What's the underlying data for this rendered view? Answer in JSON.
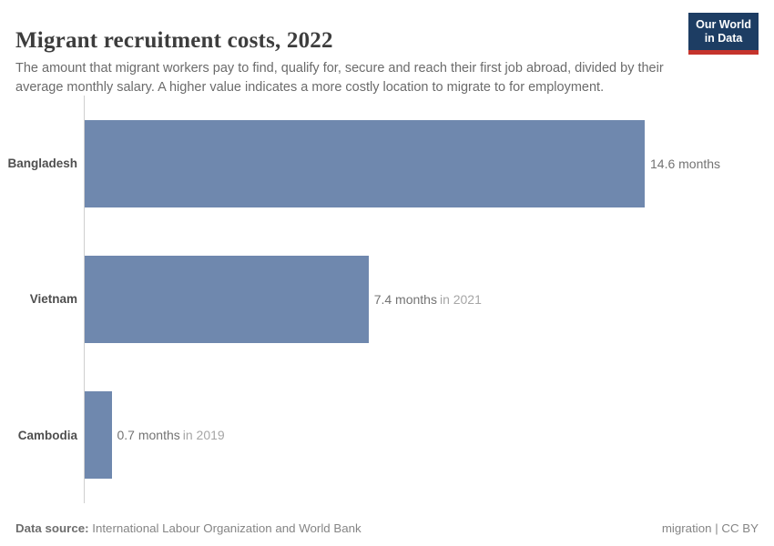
{
  "header": {
    "title": "Migrant recruitment costs, 2022",
    "subtitle": "The amount that migrant workers pay to find, qualify for, secure and reach their first job abroad, divided by their average monthly salary. A higher value indicates a more costly location to migrate to for employment.",
    "logo": {
      "line1": "Our World",
      "line2": "in Data"
    }
  },
  "chart_data": {
    "type": "bar",
    "orientation": "horizontal",
    "title": "Migrant recruitment costs, 2022",
    "unit": "months",
    "xlim": [
      0,
      14.6
    ],
    "grid": false,
    "legend": "none",
    "bar_color": "#6f88ae",
    "categories": [
      "Bangladesh",
      "Vietnam",
      "Cambodia"
    ],
    "values": [
      14.6,
      7.4,
      0.7
    ],
    "bars": [
      {
        "entity": "Bangladesh",
        "value": 14.6,
        "value_label": "14.6 months",
        "year_note": ""
      },
      {
        "entity": "Vietnam",
        "value": 7.4,
        "value_label": "7.4 months",
        "year_note": "in 2021"
      },
      {
        "entity": "Cambodia",
        "value": 0.7,
        "value_label": "0.7 months",
        "year_note": "in 2019"
      }
    ]
  },
  "footer": {
    "source_label": "Data source:",
    "source_text": "International Labour Organization and World Bank",
    "rights": "migration | CC BY"
  },
  "colors": {
    "bar": "#6f88ae",
    "axis_line": "#cfcfcf",
    "title_text": "#3d3d3d",
    "subtitle_text": "#6b6b6b",
    "entity_text": "#4f4f4f",
    "value_text": "#737373",
    "year_note_text": "#a6a6a6",
    "logo_bg": "#1d3d63",
    "logo_accent": "#c5342c",
    "footer_text": "#858585"
  }
}
